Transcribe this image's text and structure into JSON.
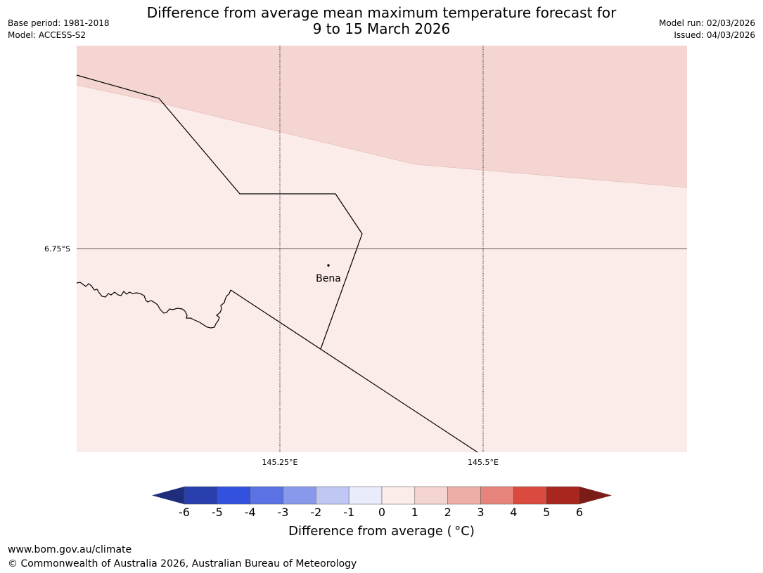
{
  "title": {
    "line1": "Difference from average mean maximum temperature forecast for",
    "line2": "9 to 15 March 2026"
  },
  "meta": {
    "base_period": "Base period: 1981-2018",
    "model": "Model: ACCESS-S2",
    "model_run": "Model run: 02/03/2026",
    "issued": "Issued: 04/03/2026"
  },
  "map": {
    "latitude_label": "6.75°S",
    "longitude_labels": [
      "145.25°E",
      "145.5°E"
    ],
    "place_label": "Bena",
    "colors": {
      "upper_band": "#f5d5d2",
      "lower_band": "#fbebe9",
      "border": "#000000",
      "graticule": "#6b5a58"
    }
  },
  "colorbar": {
    "label": "Difference from average ( °C)",
    "tick_labels": [
      "-6",
      "-5",
      "-4",
      "-3",
      "-2",
      "-1",
      "0",
      "1",
      "2",
      "3",
      "4",
      "5",
      "6"
    ],
    "low_extend_color": "#1e2d7c",
    "high_extend_color": "#7a1d18",
    "colors": [
      "#2a3fae",
      "#3251de",
      "#5a72e4",
      "#8899eb",
      "#c0c7f4",
      "#e9ecfb",
      "#fbebe9",
      "#f5d5d2",
      "#eeaea8",
      "#e6847c",
      "#db4a3e",
      "#a8261e"
    ]
  },
  "footer": {
    "url": "www.bom.gov.au/climate",
    "copyright": "© Commonwealth of Australia 2026, Australian Bureau of Meteorology"
  }
}
